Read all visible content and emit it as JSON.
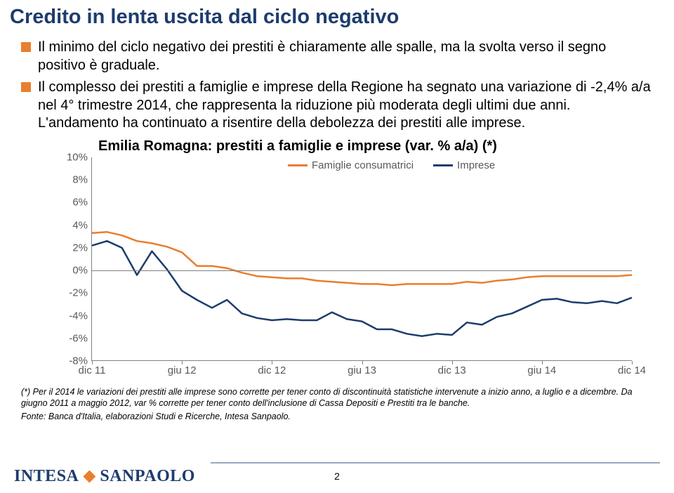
{
  "title": "Credito in lenta uscita dal ciclo negativo",
  "bullets": [
    "Il minimo del ciclo negativo dei prestiti è chiaramente alle spalle, ma la svolta verso il segno positivo è graduale.",
    "Il complesso dei prestiti a famiglie e imprese della Regione ha segnato una variazione di -2,4% a/a nel 4° trimestre 2014, che rappresenta la riduzione più moderata degli ultimi due anni. L'andamento ha continuato a risentire della debolezza dei prestiti alle imprese."
  ],
  "chart": {
    "title": "Emilia Romagna: prestiti a famiglie e imprese (var. % a/a) (*)",
    "type": "line",
    "ylim": [
      -8,
      10
    ],
    "ytick_step": 2,
    "y_ticks": [
      "10%",
      "8%",
      "6%",
      "4%",
      "2%",
      "0%",
      "-2%",
      "-4%",
      "-6%",
      "-8%"
    ],
    "x_labels": [
      "dic 11",
      "giu 12",
      "dic 12",
      "giu 13",
      "dic 13",
      "giu 14",
      "dic 14"
    ],
    "background_color": "#ffffff",
    "axis_color": "#808080",
    "tick_font_color": "#595959",
    "tick_fontsize": 15,
    "title_fontsize": 20,
    "legend": {
      "items": [
        {
          "label": "Famiglie consumatrici",
          "color": "#e97e2e"
        },
        {
          "label": "Imprese",
          "color": "#1d3c6d"
        }
      ]
    },
    "line_width": 2.5,
    "series": {
      "famiglie": {
        "color": "#e97e2e",
        "y": [
          3.3,
          3.4,
          3.1,
          2.6,
          2.4,
          2.1,
          1.6,
          0.4,
          0.4,
          0.2,
          -0.2,
          -0.5,
          -0.6,
          -0.7,
          -0.7,
          -0.9,
          -1.0,
          -1.1,
          -1.2,
          -1.2,
          -1.3,
          -1.2,
          -1.2,
          -1.2,
          -1.2,
          -1.0,
          -1.1,
          -0.9,
          -0.8,
          -0.6,
          -0.5,
          -0.5,
          -0.5,
          -0.5,
          -0.5,
          -0.5,
          -0.4
        ]
      },
      "imprese": {
        "color": "#1d3c6d",
        "y": [
          2.2,
          2.6,
          2.0,
          -0.4,
          1.7,
          0.1,
          -1.8,
          -2.6,
          -3.3,
          -2.6,
          -3.8,
          -4.2,
          -4.4,
          -4.3,
          -4.4,
          -4.4,
          -3.7,
          -4.3,
          -4.5,
          -5.2,
          -5.2,
          -5.6,
          -5.8,
          -5.6,
          -5.7,
          -4.6,
          -4.8,
          -4.1,
          -3.8,
          -3.2,
          -2.6,
          -2.5,
          -2.8,
          -2.9,
          -2.7,
          -2.9,
          -2.4
        ]
      }
    }
  },
  "footnote1": "(*) Per il 2014 le variazioni dei prestiti alle imprese sono corrette per tener conto di discontinuità statistiche intervenute a inizio anno, a luglio e a dicembre. Da giugno 2011 a maggio 2012, var % corrette per tener conto dell'inclusione di Cassa Depositi e Prestiti tra le banche.",
  "footnote2": "Fonte: Banca d'Italia, elaborazioni Studi e Ricerche, Intesa Sanpaolo.",
  "logo": {
    "part1": "INTESA",
    "part2": "SANPAOLO"
  },
  "page_number": "2"
}
